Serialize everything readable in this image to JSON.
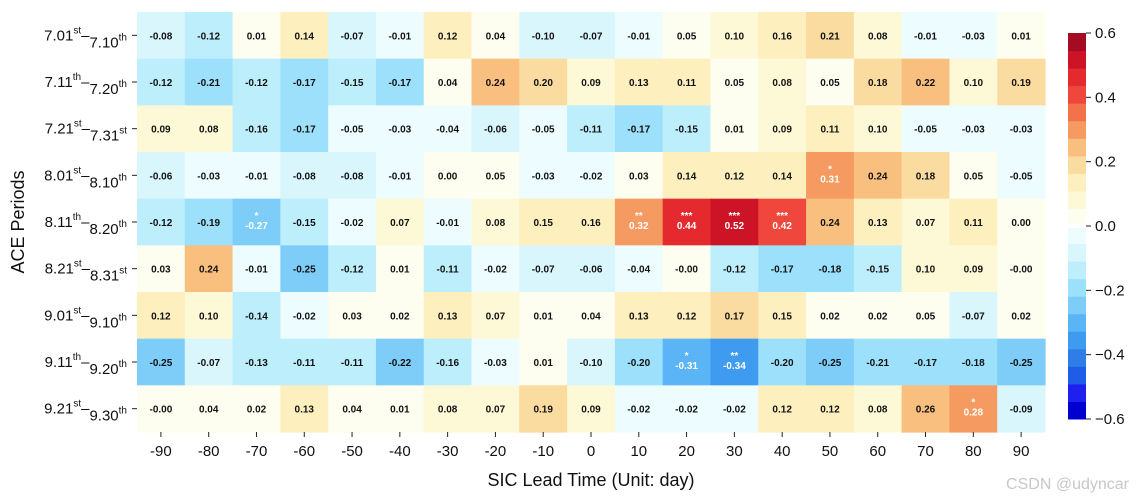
{
  "chart_data": {
    "type": "heatmap",
    "xlabel": "SIC Lead Time (Unit: day)",
    "ylabel": "ACE Periods",
    "x_ticks": [
      "-90",
      "-80",
      "-70",
      "-60",
      "-50",
      "-40",
      "-30",
      "-20",
      "-10",
      "0",
      "10",
      "20",
      "30",
      "40",
      "50",
      "60",
      "70",
      "80",
      "90"
    ],
    "y_ticks": [
      {
        "a": "7.01",
        "as": "st",
        "b": "7.10",
        "bs": "th"
      },
      {
        "a": "7.11",
        "as": "th",
        "b": "7.20",
        "bs": "th"
      },
      {
        "a": "7.21",
        "as": "st",
        "b": "7.31",
        "bs": "st"
      },
      {
        "a": "8.01",
        "as": "st",
        "b": "8.10",
        "bs": "th"
      },
      {
        "a": "8.11",
        "as": "th",
        "b": "8.20",
        "bs": "th"
      },
      {
        "a": "8.21",
        "as": "st",
        "b": "8.31",
        "bs": "st"
      },
      {
        "a": "9.01",
        "as": "st",
        "b": "9.10",
        "bs": "th"
      },
      {
        "a": "9.11",
        "as": "th",
        "b": "9.20",
        "bs": "th"
      },
      {
        "a": "9.21",
        "as": "st",
        "b": "9.30",
        "bs": "th"
      }
    ],
    "values": [
      [
        "-0.08",
        "-0.12",
        "0.01",
        "0.14",
        "-0.07",
        "-0.01",
        "0.12",
        "0.04",
        "-0.10",
        "-0.07",
        "-0.01",
        "0.05",
        "0.10",
        "0.16",
        "0.21",
        "0.08",
        "-0.01",
        "-0.03",
        "0.01"
      ],
      [
        "-0.12",
        "-0.21",
        "-0.12",
        "-0.17",
        "-0.15",
        "-0.17",
        "0.04",
        "0.24",
        "0.20",
        "0.09",
        "0.13",
        "0.11",
        "0.05",
        "0.08",
        "0.05",
        "0.18",
        "0.22",
        "0.10",
        "0.19"
      ],
      [
        "0.09",
        "0.08",
        "-0.16",
        "-0.17",
        "-0.05",
        "-0.03",
        "-0.04",
        "-0.06",
        "-0.05",
        "-0.11",
        "-0.17",
        "-0.15",
        "0.01",
        "0.09",
        "0.11",
        "0.10",
        "-0.05",
        "-0.03",
        "-0.03"
      ],
      [
        "-0.06",
        "-0.03",
        "-0.01",
        "-0.08",
        "-0.08",
        "-0.01",
        "0.00",
        "0.05",
        "-0.03",
        "-0.02",
        "0.03",
        "0.14",
        "0.12",
        "0.14",
        "0.31",
        "0.24",
        "0.18",
        "0.05",
        "-0.05"
      ],
      [
        "-0.12",
        "-0.19",
        "-0.27",
        "-0.15",
        "-0.02",
        "0.07",
        "-0.01",
        "0.08",
        "0.15",
        "0.16",
        "0.32",
        "0.44",
        "0.52",
        "0.42",
        "0.24",
        "0.13",
        "0.07",
        "0.11",
        "0.00"
      ],
      [
        "0.03",
        "0.24",
        "-0.01",
        "-0.25",
        "-0.12",
        "0.01",
        "-0.11",
        "-0.02",
        "-0.07",
        "-0.06",
        "-0.04",
        "-0.00",
        "-0.12",
        "-0.17",
        "-0.18",
        "-0.15",
        "0.10",
        "0.09",
        "-0.00"
      ],
      [
        "0.12",
        "0.10",
        "-0.14",
        "-0.02",
        "0.03",
        "0.02",
        "0.13",
        "0.07",
        "0.01",
        "0.04",
        "0.13",
        "0.12",
        "0.17",
        "0.15",
        "0.02",
        "0.02",
        "0.05",
        "-0.07",
        "0.02"
      ],
      [
        "-0.25",
        "-0.07",
        "-0.13",
        "-0.11",
        "-0.11",
        "-0.22",
        "-0.16",
        "-0.03",
        "0.01",
        "-0.10",
        "-0.20",
        "-0.31",
        "-0.34",
        "-0.20",
        "-0.25",
        "-0.21",
        "-0.17",
        "-0.18",
        "-0.25"
      ],
      [
        "-0.00",
        "0.04",
        "0.02",
        "0.13",
        "0.04",
        "0.01",
        "0.08",
        "0.07",
        "0.19",
        "0.09",
        "-0.02",
        "-0.02",
        "-0.02",
        "0.12",
        "0.12",
        "0.08",
        "0.26",
        "0.28",
        "-0.09"
      ]
    ],
    "significance": [
      {
        "row": 3,
        "col": 14,
        "mark": "*"
      },
      {
        "row": 4,
        "col": 2,
        "mark": "*"
      },
      {
        "row": 4,
        "col": 10,
        "mark": "**"
      },
      {
        "row": 4,
        "col": 11,
        "mark": "***"
      },
      {
        "row": 4,
        "col": 12,
        "mark": "***"
      },
      {
        "row": 4,
        "col": 13,
        "mark": "***"
      },
      {
        "row": 7,
        "col": 11,
        "mark": "*"
      },
      {
        "row": 7,
        "col": 12,
        "mark": "**"
      },
      {
        "row": 8,
        "col": 17,
        "mark": "*"
      }
    ],
    "colorbar": {
      "vmin": -0.6,
      "vmax": 0.6,
      "ticks": [
        "0.6",
        "0.4",
        "0.2",
        "0.0",
        "−0.2",
        "−0.4",
        "−0.6"
      ],
      "tick_values": [
        0.6,
        0.4,
        0.2,
        0.0,
        -0.2,
        -0.4,
        -0.6
      ],
      "neg_colors": [
        "#0000d0",
        "#1f1ff0",
        "#1f5ce8",
        "#2f7ee8",
        "#3e9bef",
        "#5bb4f5",
        "#7dcdf8",
        "#9de0fb",
        "#bdeefc",
        "#d9f6fd",
        "#edfcfe"
      ],
      "pos_colors": [
        "#fdfdf0",
        "#fdf8d6",
        "#fdefbe",
        "#fbdca0",
        "#f8bf7e",
        "#f59a60",
        "#f3714b",
        "#ef473c",
        "#e42a2e",
        "#cc1426",
        "#a50b22"
      ]
    }
  },
  "watermark": "CSDN @udyncar"
}
